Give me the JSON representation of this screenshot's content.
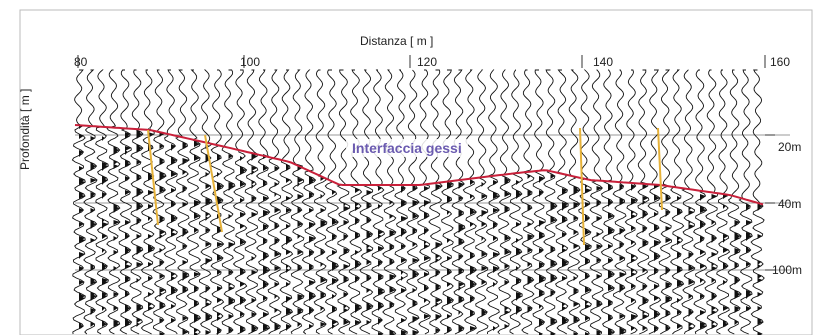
{
  "title": "Distanza [ m ]",
  "y_axis_label": "Profondità [ m ]",
  "x_ticks": [
    "80",
    "100",
    "120",
    "140",
    "160"
  ],
  "depth_ticks": [
    "20m",
    "40m",
    "100m"
  ],
  "interface_label": "Interfaccia gessi",
  "colors": {
    "interface_line": "#c8203a",
    "fault_lines": "#e6b23a",
    "wiggle": "#111111",
    "grid": "#9a9a9a",
    "interface_label_text": "#6b5bb0"
  }
}
